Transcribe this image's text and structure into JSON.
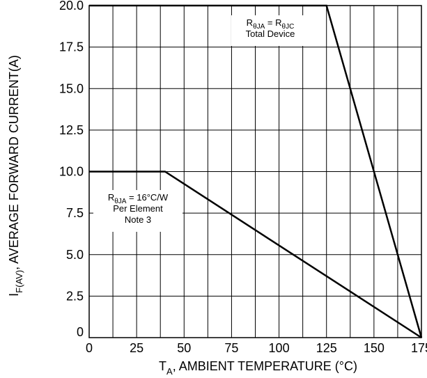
{
  "chart_data": {
    "type": "line",
    "xlabel": {
      "main": "T",
      "sub": "A",
      "rest": ", AMBIENT TEMPERATURE (°C)"
    },
    "ylabel": {
      "main": "I",
      "sub": "F(AV)",
      "rest": ", AVERAGE FORWARD CURRENT(A)"
    },
    "xlim": [
      0,
      175
    ],
    "ylim": [
      0,
      20
    ],
    "x_ticks": [
      0,
      25,
      50,
      75,
      100,
      125,
      150,
      175
    ],
    "x_tick_labels": [
      "0",
      "25",
      "50",
      "75",
      "100",
      "125",
      "150",
      "175"
    ],
    "y_ticks": [
      0,
      2.5,
      5,
      7.5,
      10,
      12.5,
      15,
      17.5,
      20
    ],
    "y_tick_labels": [
      "0",
      "2.5",
      "5.0",
      "7.5",
      "10.0",
      "12.5",
      "15.0",
      "17.5",
      "20.0"
    ],
    "grid": true,
    "x_minor_step": 12.5,
    "y_minor_step": 2.5,
    "series": [
      {
        "points": [
          [
            0,
            20
          ],
          [
            125,
            20
          ],
          [
            175,
            0
          ]
        ]
      },
      {
        "points": [
          [
            0,
            10
          ],
          [
            40,
            10
          ],
          [
            175,
            0
          ]
        ]
      }
    ],
    "annotations": [
      {
        "id": "total",
        "lines": [
          [
            {
              "t": "R"
            },
            {
              "t": "θJA",
              "sub": true
            },
            {
              "t": " = R"
            },
            {
              "t": "θJC",
              "sub": true
            }
          ],
          [
            {
              "t": "Total Device"
            }
          ]
        ]
      },
      {
        "id": "element",
        "lines": [
          [
            {
              "t": "R"
            },
            {
              "t": "θJA",
              "sub": true
            },
            {
              "t": " = 16°C/W"
            }
          ],
          [
            {
              "t": "Per Element"
            }
          ],
          [
            {
              "t": "Note 3"
            }
          ]
        ]
      }
    ]
  }
}
